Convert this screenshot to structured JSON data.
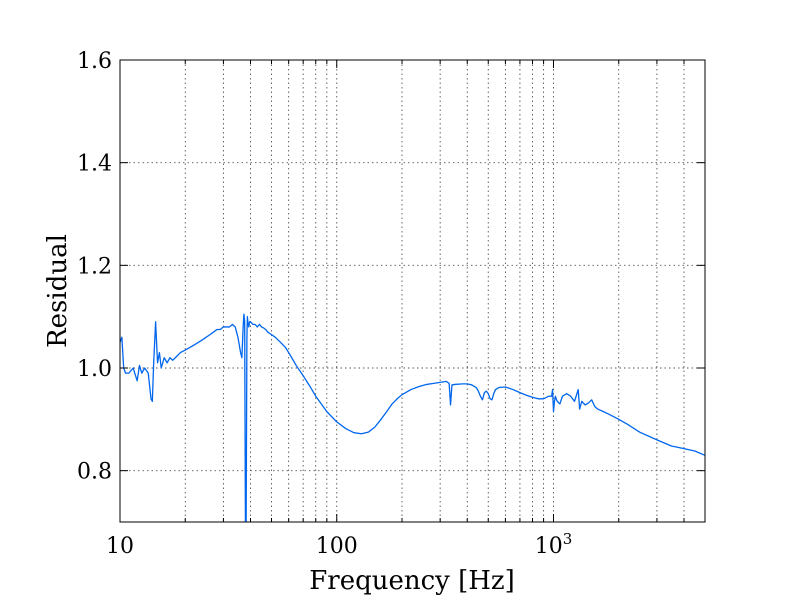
{
  "chart_data": {
    "type": "line",
    "title": "",
    "xlabel": "Frequency [Hz]",
    "ylabel": "Residual",
    "xscale": "log",
    "xlim": [
      10,
      5000
    ],
    "ylim": [
      0.7,
      1.6
    ],
    "grid": true,
    "line_color": "#0066ee",
    "x_ticks": [
      {
        "value": 10,
        "label": "10",
        "sup": ""
      },
      {
        "value": 100,
        "label": "100",
        "sup": ""
      },
      {
        "value": 1000,
        "label": "10",
        "sup": "3"
      }
    ],
    "y_ticks": [
      {
        "value": 0.8,
        "label": "0.8"
      },
      {
        "value": 1.0,
        "label": "1.0"
      },
      {
        "value": 1.2,
        "label": "1.2"
      },
      {
        "value": 1.4,
        "label": "1.4"
      },
      {
        "value": 1.6,
        "label": "1.6"
      }
    ],
    "series": [
      {
        "x": [
          10.0,
          10.2,
          10.4,
          10.6,
          11.0,
          11.5,
          12.0,
          12.3,
          12.6,
          13.0,
          13.5,
          13.9,
          14.1,
          14.3,
          14.6,
          14.9,
          15.2,
          15.5,
          16.0,
          16.5,
          17.0,
          17.5,
          18.0,
          19.0,
          20.0,
          21.0,
          22.0,
          23.0,
          24.0,
          25.0,
          26.0,
          27.0,
          28.0,
          29.0,
          30.0,
          31.0,
          32.0,
          33.0,
          34.0,
          35.0,
          36.0,
          36.5,
          37.0,
          37.3,
          37.6,
          37.9,
          38.2,
          38.5,
          38.7,
          39.0,
          39.3,
          39.6,
          40.0,
          41.0,
          42.0,
          43.0,
          44.0,
          45.0,
          46.0,
          47.0,
          48.0,
          50.0,
          52.0,
          55.0,
          58.0,
          60.0,
          62.0,
          65.0,
          70.0,
          75.0,
          80.0,
          90.0,
          100.0,
          110.0,
          120.0,
          130.0,
          140.0,
          150.0,
          160.0,
          170.0,
          180.0,
          190.0,
          200.0,
          220.0,
          240.0,
          260.0,
          280.0,
          300.0,
          320.0,
          330.0,
          335.0,
          340.0,
          350.0,
          380.0,
          400.0,
          420.0,
          440.0,
          450.0,
          460.0,
          470.0,
          480.0,
          490.0,
          500.0,
          510.0,
          520.0,
          530.0,
          540.0,
          560.0,
          600.0,
          650.0,
          700.0,
          750.0,
          800.0,
          850.0,
          900.0,
          950.0,
          980.0,
          990.0,
          1000.0,
          1010.0,
          1020.0,
          1040.0,
          1070.0,
          1100.0,
          1150.0,
          1200.0,
          1250.0,
          1300.0,
          1320.0,
          1350.0,
          1400.0,
          1450.0,
          1500.0,
          1550.0,
          1600.0,
          1700.0,
          1800.0,
          2000.0,
          2200.0,
          2500.0,
          3000.0,
          3500.0,
          4000.0,
          4500.0,
          5000.0
        ],
        "y": [
          1.05,
          1.06,
          1.0,
          0.99,
          0.99,
          1.0,
          0.975,
          1.005,
          0.99,
          1.0,
          0.99,
          0.94,
          0.935,
          1.01,
          1.09,
          1.01,
          1.03,
          1.0,
          1.02,
          1.01,
          1.02,
          1.015,
          1.02,
          1.03,
          1.035,
          1.04,
          1.045,
          1.05,
          1.055,
          1.06,
          1.065,
          1.07,
          1.075,
          1.075,
          1.08,
          1.08,
          1.08,
          1.085,
          1.08,
          1.06,
          1.03,
          1.02,
          1.08,
          1.105,
          1.09,
          0.7,
          0.7,
          1.06,
          1.1,
          1.085,
          1.08,
          1.09,
          1.09,
          1.085,
          1.085,
          1.08,
          1.085,
          1.08,
          1.078,
          1.075,
          1.07,
          1.065,
          1.06,
          1.05,
          1.04,
          1.03,
          1.02,
          1.005,
          0.985,
          0.965,
          0.945,
          0.915,
          0.895,
          0.882,
          0.874,
          0.872,
          0.875,
          0.885,
          0.9,
          0.915,
          0.93,
          0.94,
          0.948,
          0.958,
          0.964,
          0.968,
          0.97,
          0.972,
          0.974,
          0.97,
          0.928,
          0.967,
          0.968,
          0.969,
          0.969,
          0.967,
          0.962,
          0.955,
          0.945,
          0.938,
          0.952,
          0.955,
          0.95,
          0.94,
          0.938,
          0.95,
          0.958,
          0.962,
          0.963,
          0.958,
          0.952,
          0.947,
          0.943,
          0.94,
          0.94,
          0.945,
          0.945,
          0.958,
          0.915,
          0.935,
          0.945,
          0.935,
          0.93,
          0.945,
          0.95,
          0.945,
          0.935,
          0.958,
          0.92,
          0.935,
          0.928,
          0.932,
          0.938,
          0.925,
          0.92,
          0.915,
          0.91,
          0.9,
          0.89,
          0.875,
          0.86,
          0.848,
          0.843,
          0.838,
          0.83
        ]
      }
    ]
  }
}
